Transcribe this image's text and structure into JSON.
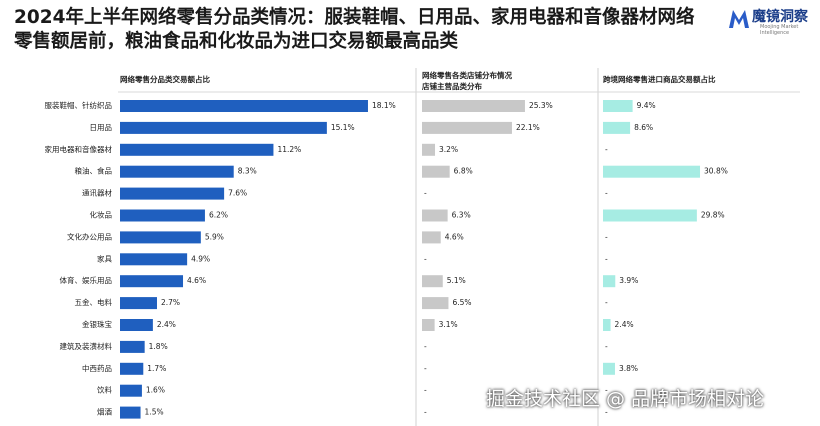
{
  "header": {
    "title": "2024年上半年网络零售分品类情况：服装鞋帽、日用品、家用电器和音像器材网络零售额居前，粮油食品和化妆品为进口交易额最高品类",
    "logo": "魔镜洞察",
    "logo_sub": "Moojing Market Intelligence"
  },
  "chart_data": [
    {
      "type": "hbar",
      "title": "网络零售分品类交易额占比",
      "color": "#1f5fbf",
      "categories": [
        "服装鞋帽、针纺织品",
        "日用品",
        "家用电器和音像器材",
        "粮油、食品",
        "通讯器材",
        "化妆品",
        "文化办公用品",
        "家具",
        "体育、娱乐用品",
        "五金、电料",
        "金银珠宝",
        "建筑及装潢材料",
        "中西药品",
        "饮料",
        "烟酒"
      ],
      "values": [
        18.1,
        15.1,
        11.2,
        8.3,
        7.6,
        6.2,
        5.9,
        4.9,
        4.6,
        2.7,
        2.4,
        1.8,
        1.7,
        1.6,
        1.5
      ],
      "value_labels": [
        "18.1%",
        "15.1%",
        "11.2%",
        "8.3%",
        "7.6%",
        "6.2%",
        "5.9%",
        "4.9%",
        "4.6%",
        "2.7%",
        "2.4%",
        "1.8%",
        "1.7%",
        "1.6%",
        "1.5%"
      ]
    },
    {
      "type": "hbar",
      "title": "网络零售各类店铺分布情况",
      "subtitle": "店铺主营品类分布",
      "color": "#c8c8c8",
      "values": [
        25.3,
        22.1,
        3.2,
        6.8,
        null,
        6.3,
        4.6,
        null,
        5.1,
        6.5,
        3.1,
        null,
        null,
        null,
        null
      ],
      "value_labels": [
        "25.3%",
        "22.1%",
        "3.2%",
        "6.8%",
        "-",
        "6.3%",
        "4.6%",
        "-",
        "5.1%",
        "6.5%",
        "3.1%",
        "-",
        "-",
        "-",
        "-"
      ]
    },
    {
      "type": "hbar",
      "title": "跨境网络零售进口商品交易额占比",
      "color": "#a6ece3",
      "values": [
        9.4,
        8.6,
        null,
        30.8,
        null,
        29.8,
        null,
        null,
        3.9,
        null,
        2.4,
        null,
        3.8,
        null,
        null
      ],
      "value_labels": [
        "9.4%",
        "8.6%",
        "-",
        "30.8%",
        "-",
        "29.8%",
        "-",
        "-",
        "3.9%",
        "-",
        "2.4%",
        "-",
        "3.8%",
        "-",
        "-"
      ]
    }
  ],
  "watermark": "掘金技术社区 @ 品牌市场相对论"
}
